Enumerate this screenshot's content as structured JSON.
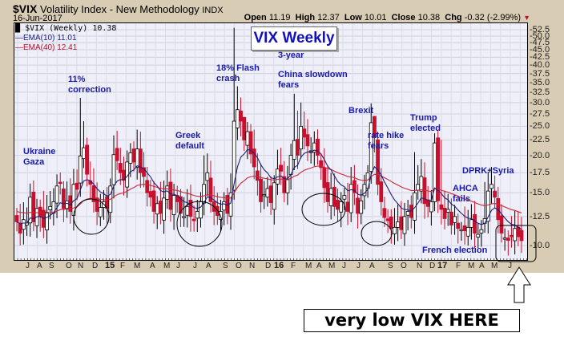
{
  "header": {
    "symbol": "$VIX",
    "name": "Volatility Index - New Methodology",
    "exchange": "INDX",
    "date": "16-Jun-2017",
    "open_label": "Open",
    "open": "11.19",
    "high_label": "High",
    "high": "12.37",
    "low_label": "Low",
    "low": "10.01",
    "close_label": "Close",
    "close": "10.38",
    "chg_label": "Chg",
    "chg": "-0.32 (-2.99%)",
    "chg_direction_icon": "down-triangle-icon"
  },
  "legend": {
    "series": "$VIX (Weekly) 10.38",
    "ema10": "EMA(10) 11.01",
    "ema40": "EMA(40) 12.41"
  },
  "title_box": "VIX Weekly",
  "annotations": {
    "ukraine": [
      "Ukraine",
      "Gaza"
    ],
    "correction": [
      "11%",
      "correction"
    ],
    "greek": [
      "Greek",
      "default"
    ],
    "flash": [
      "18% Flash",
      "crash"
    ],
    "china": [
      "3-year",
      "China slowdown",
      "fears"
    ],
    "brexit": [
      "Brexit"
    ],
    "ratehike": [
      "rate hike",
      "fears"
    ],
    "trump": [
      "Trump",
      "elected"
    ],
    "dprk": [
      "DPRK+Syria"
    ],
    "ahca": [
      "AHCA",
      "fails"
    ],
    "french": [
      "French election"
    ]
  },
  "callout": "very low VIX HERE",
  "colors": {
    "up_candle": "#ffffff",
    "down_candle": "#c8102e",
    "ema10": "#1c1f7a",
    "ema40": "#c8283c",
    "plot_bg": "#eeeff8",
    "frame_bg": "#d8ccb4",
    "annotation": "#1a1aa8"
  },
  "chart_data": {
    "type": "candlestick",
    "title": "VIX Weekly",
    "subtitle": "$VIX Volatility Index - New Methodology INDX, 16-Jun-2017",
    "xlabel": "",
    "ylabel": "",
    "y_scale": "log",
    "ylim": [
      9,
      55
    ],
    "y_ticks": [
      "52.5",
      "50.0",
      "47.5",
      "45.0",
      "42.5",
      "40.0",
      "37.5",
      "35.0",
      "32.5",
      "30.0",
      "27.5",
      "25.0",
      "22.5",
      "20.0",
      "17.5",
      "15.0",
      "12.5",
      "10.0"
    ],
    "x_ticks": [
      "J",
      "A",
      "S",
      "O",
      "N",
      "D",
      "15",
      "F",
      "M",
      "A",
      "M",
      "J",
      "J",
      "A",
      "S",
      "O",
      "N",
      "D",
      "16",
      "F",
      "M",
      "A",
      "M",
      "J",
      "J",
      "A",
      "S",
      "O",
      "N",
      "D",
      "17",
      "F",
      "M",
      "A",
      "M",
      "J"
    ],
    "grid": true,
    "legend_position": "top-left",
    "series": [
      {
        "name": "$VIX (Weekly)",
        "last": 10.38
      },
      {
        "name": "EMA(10)",
        "last": 11.01
      },
      {
        "name": "EMA(40)",
        "last": 12.41
      }
    ],
    "last_bar": {
      "date": "16-Jun-2017",
      "open": 11.19,
      "high": 12.37,
      "low": 10.01,
      "close": 10.38,
      "change": -0.32,
      "change_pct": -2.99
    },
    "key_highs": [
      {
        "event": "11% correction",
        "approx": 31.1
      },
      {
        "event": "18% Flash crash",
        "approx": 53.3
      },
      {
        "event": "3-year China slowdown fears",
        "approx": 32.1
      },
      {
        "event": "Brexit",
        "approx": 26.7
      },
      {
        "event": "rate hike fears",
        "approx": 20.5
      },
      {
        "event": "Trump elected",
        "approx": 22.5
      },
      {
        "event": "DPRK+Syria",
        "approx": 16.3
      }
    ],
    "annotations": [
      "Ukraine Gaza",
      "11% correction",
      "Greek default",
      "18% Flash crash",
      "3-year China slowdown fears",
      "Brexit",
      "rate hike fears",
      "Trump elected",
      "AHCA fails",
      "DPRK+Syria",
      "French election",
      "very low VIX HERE"
    ]
  }
}
